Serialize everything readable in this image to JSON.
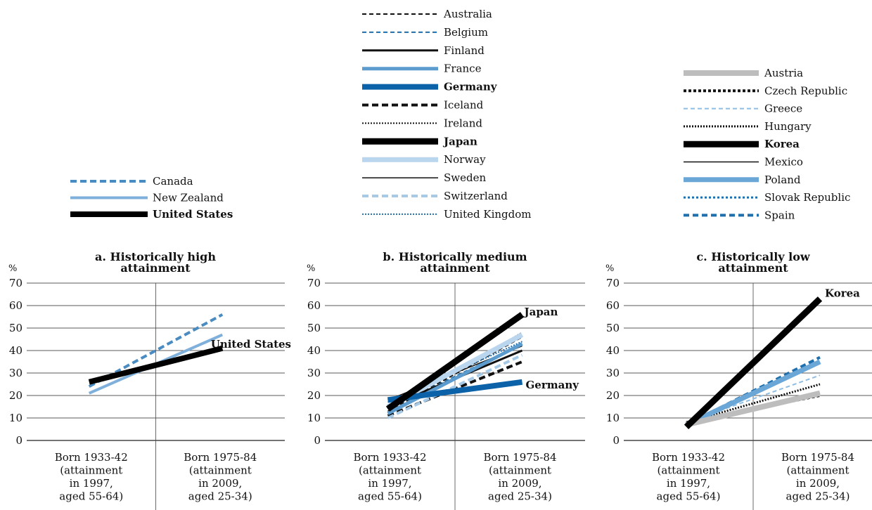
{
  "styles": {
    "Australia": {
      "color": "#111111",
      "width": 2,
      "dash": "6 4"
    },
    "Belgium": {
      "color": "#1f6fad",
      "width": 2,
      "dash": "6 4"
    },
    "Finland": {
      "color": "#111111",
      "width": 3,
      "dash": ""
    },
    "France": {
      "color": "#5b9bcd",
      "width": 5,
      "dash": ""
    },
    "Germany": {
      "color": "#0b62a8",
      "width": 8,
      "dash": ""
    },
    "Iceland": {
      "color": "#111111",
      "width": 4,
      "dash": "9 5"
    },
    "Ireland": {
      "color": "#111111",
      "width": 2,
      "dash": "2 2"
    },
    "Japan": {
      "color": "#000000",
      "width": 9,
      "dash": ""
    },
    "Norway": {
      "color": "#b9d6ee",
      "width": 7,
      "dash": ""
    },
    "Sweden": {
      "color": "#111111",
      "width": 1.5,
      "dash": ""
    },
    "Switzerland": {
      "color": "#a6c9e6",
      "width": 4,
      "dash": "9 5"
    },
    "United Kingdom": {
      "color": "#1f6fad",
      "width": 2,
      "dash": "2 2"
    },
    "Canada": {
      "color": "#4a8cc2",
      "width": 4,
      "dash": "9 5"
    },
    "New Zealand": {
      "color": "#7fb0db",
      "width": 4,
      "dash": ""
    },
    "United States": {
      "color": "#000000",
      "width": 8,
      "dash": ""
    },
    "Austria": {
      "color": "#bdbdbd",
      "width": 8,
      "dash": ""
    },
    "Czech Republic": {
      "color": "#111111",
      "width": 4,
      "dash": "4 3"
    },
    "Greece": {
      "color": "#8fbde3",
      "width": 2,
      "dash": "6 4"
    },
    "Hungary": {
      "color": "#111111",
      "width": 3,
      "dash": "2 2"
    },
    "Korea": {
      "color": "#000000",
      "width": 9,
      "dash": ""
    },
    "Mexico": {
      "color": "#111111",
      "width": 1.5,
      "dash": ""
    },
    "Poland": {
      "color": "#6aa6d6",
      "width": 7,
      "dash": ""
    },
    "Slovak Republic": {
      "color": "#1f6fad",
      "width": 3,
      "dash": "3 3"
    },
    "Spain": {
      "color": "#1f6fad",
      "width": 4,
      "dash": "8 5"
    }
  },
  "chart_data": [
    {
      "type": "line",
      "title_lines": [
        "a. Historically high",
        "attainment"
      ],
      "y_unit": "%",
      "ylim": [
        0,
        70
      ],
      "yticks": [
        0,
        10,
        20,
        30,
        40,
        50,
        60,
        70
      ],
      "grid": true,
      "categories": [
        [
          "Born 1933-42",
          "(attainment",
          "in 1997,",
          "aged 55-64)"
        ],
        [
          "Born 1975-84",
          "(attainment",
          "in 2009,",
          "aged 25-34)"
        ]
      ],
      "legend": [
        "Canada",
        "New Zealand",
        "United States"
      ],
      "bold": [
        "United States"
      ],
      "end_labels": [
        "United States"
      ],
      "series": [
        {
          "name": "Canada",
          "values": [
            24,
            56
          ]
        },
        {
          "name": "New Zealand",
          "values": [
            21,
            47
          ]
        },
        {
          "name": "United States",
          "values": [
            26,
            41
          ]
        }
      ]
    },
    {
      "type": "line",
      "title_lines": [
        "b. Historically medium",
        "attainment"
      ],
      "y_unit": "%",
      "ylim": [
        0,
        70
      ],
      "yticks": [
        0,
        10,
        20,
        30,
        40,
        50,
        60,
        70
      ],
      "grid": true,
      "categories": [
        [
          "Born 1933-42",
          "(attainment",
          "in 1997,",
          "aged 55-64)"
        ],
        [
          "Born 1975-84",
          "(attainment",
          "in 2009,",
          "aged 25-34)"
        ]
      ],
      "legend": [
        "Australia",
        "Belgium",
        "Finland",
        "France",
        "Germany",
        "Iceland",
        "Ireland",
        "Japan",
        "Norway",
        "Sweden",
        "Switzerland",
        "United Kingdom"
      ],
      "bold": [
        "Germany",
        "Japan"
      ],
      "end_labels": [
        "Japan",
        "Germany"
      ],
      "series": [
        {
          "name": "Australia",
          "values": [
            13,
            46
          ]
        },
        {
          "name": "Belgium",
          "values": [
            14,
            43
          ]
        },
        {
          "name": "Finland",
          "values": [
            15,
            40
          ]
        },
        {
          "name": "France",
          "values": [
            12,
            43
          ]
        },
        {
          "name": "Germany",
          "values": [
            18,
            26
          ]
        },
        {
          "name": "Iceland",
          "values": [
            11,
            35
          ]
        },
        {
          "name": "Ireland",
          "values": [
            14,
            48
          ]
        },
        {
          "name": "Japan",
          "values": [
            14,
            56
          ]
        },
        {
          "name": "Norway",
          "values": [
            15,
            47
          ]
        },
        {
          "name": "Sweden",
          "values": [
            18,
            42
          ]
        },
        {
          "name": "Switzerland",
          "values": [
            10,
            38
          ]
        },
        {
          "name": "United Kingdom",
          "values": [
            17,
            44
          ]
        }
      ]
    },
    {
      "type": "line",
      "title_lines": [
        "c. Historically low",
        "attainment"
      ],
      "y_unit": "%",
      "ylim": [
        0,
        70
      ],
      "yticks": [
        0,
        10,
        20,
        30,
        40,
        50,
        60,
        70
      ],
      "grid": true,
      "categories": [
        [
          "Born 1933-42",
          "(attainment",
          "in 1997,",
          "aged 55-64)"
        ],
        [
          "Born 1975-84",
          "(attainment",
          "in 2009,",
          "aged 25-34)"
        ]
      ],
      "legend": [
        "Austria",
        "Czech Republic",
        "Greece",
        "Hungary",
        "Korea",
        "Mexico",
        "Poland",
        "Slovak Republic",
        "Spain"
      ],
      "bold": [
        "Korea"
      ],
      "end_labels": [
        "Korea"
      ],
      "series": [
        {
          "name": "Austria",
          "values": [
            7,
            21
          ]
        },
        {
          "name": "Czech Republic",
          "values": [
            8,
            20
          ]
        },
        {
          "name": "Greece",
          "values": [
            8,
            29
          ]
        },
        {
          "name": "Hungary",
          "values": [
            8,
            25
          ]
        },
        {
          "name": "Korea",
          "values": [
            6,
            63
          ]
        },
        {
          "name": "Mexico",
          "values": [
            7,
            20
          ]
        },
        {
          "name": "Poland",
          "values": [
            7,
            35
          ]
        },
        {
          "name": "Slovak Republic",
          "values": [
            8,
            21
          ]
        },
        {
          "name": "Spain",
          "values": [
            7,
            37
          ]
        }
      ]
    }
  ]
}
